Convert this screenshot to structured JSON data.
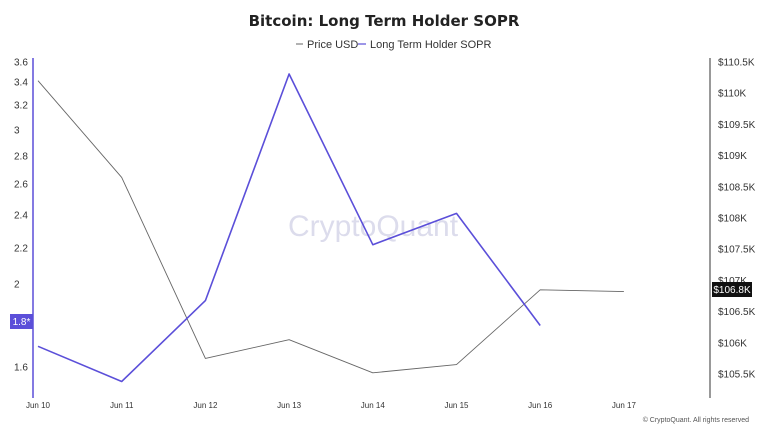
{
  "chart_data": {
    "type": "line",
    "title": "Bitcoin: Long Term Holder SOPR",
    "categories": [
      "Jun 10",
      "Jun 11",
      "Jun 12",
      "Jun 13",
      "Jun 14",
      "Jun 15",
      "Jun 16",
      "Jun 17"
    ],
    "series": [
      {
        "name": "Price USD",
        "axis": "right",
        "color": "#666666",
        "values": [
          110200,
          108650,
          105750,
          106050,
          105520,
          105650,
          106850,
          106820
        ]
      },
      {
        "name": "Long Term Holder SOPR",
        "axis": "left",
        "color": "#5b4fd9",
        "values": [
          1.7,
          1.53,
          1.92,
          3.48,
          2.22,
          2.41,
          1.8,
          null
        ]
      }
    ],
    "y_left": {
      "ticks": [
        "1.6",
        "2",
        "2.2",
        "2.4",
        "2.6",
        "2.8",
        "3",
        "3.2",
        "3.4",
        "3.6"
      ],
      "current_label": "1.8*"
    },
    "y_right": {
      "ticks": [
        "$105.5K",
        "$106K",
        "$106.5K",
        "$107K",
        "$107.5K",
        "$108K",
        "$108.5K",
        "$109K",
        "$109.5K",
        "$110K",
        "$110.5K"
      ],
      "current_label": "$106.8K"
    },
    "legend_position": "top-center",
    "grid": false
  },
  "watermark": "CryptoQuant",
  "copyright": "© CryptoQuant. All rights reserved"
}
